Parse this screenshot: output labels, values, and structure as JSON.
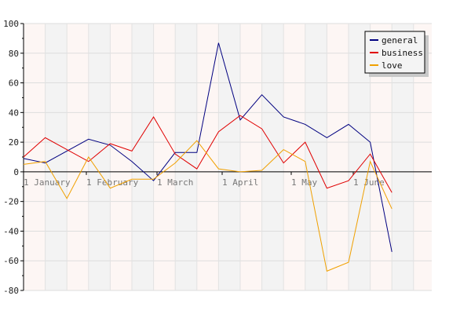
{
  "chart_data": {
    "type": "line",
    "x_labels": [
      "1 January",
      "1 February",
      "1 March",
      "1 April",
      "1 May",
      "1 June"
    ],
    "ylim": [
      -80,
      100
    ],
    "y_ticks": [
      100,
      80,
      60,
      40,
      20,
      0,
      -20,
      -40,
      -60,
      -80
    ],
    "grid": true,
    "legend_position": "top-right",
    "series": [
      {
        "name": "general",
        "color": "#000080",
        "values": [
          9,
          6,
          14,
          22,
          18,
          7,
          -6,
          13,
          13,
          87,
          35,
          52,
          37,
          32,
          23,
          32,
          20,
          -54
        ]
      },
      {
        "name": "business",
        "color": "#e00000",
        "values": [
          10,
          23,
          15,
          7,
          19,
          14,
          37,
          12,
          2,
          27,
          38,
          29,
          6,
          20,
          -11,
          -6,
          12,
          -14
        ]
      },
      {
        "name": "love",
        "color": "#f0a000",
        "values": [
          5,
          7,
          -18,
          10,
          -11,
          -5,
          -5,
          6,
          21,
          2,
          0,
          1,
          15,
          7,
          -67,
          -61,
          7,
          -25
        ]
      }
    ]
  }
}
